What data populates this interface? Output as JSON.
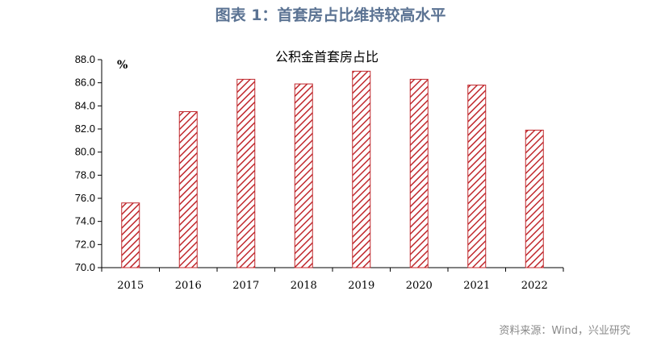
{
  "figure": {
    "title": "图表 1：首套房占比维持较高水平",
    "source": "资料来源：Wind，兴业研究"
  },
  "colors": {
    "bar_stroke": "#c0282d",
    "bar_hatch": "#c0282d",
    "title": "#5b7393",
    "source": "#8a8a8a"
  },
  "chart_data": {
    "type": "bar",
    "title": "公积金首套房占比",
    "unit": "%",
    "categories": [
      "2015",
      "2016",
      "2017",
      "2018",
      "2019",
      "2020",
      "2021",
      "2022"
    ],
    "values": [
      75.6,
      83.5,
      86.3,
      85.9,
      87.0,
      86.3,
      85.8,
      81.9
    ],
    "yticks": [
      "70.0",
      "72.0",
      "74.0",
      "76.0",
      "78.0",
      "80.0",
      "82.0",
      "84.0",
      "86.0",
      "88.0"
    ],
    "ylim": [
      70,
      88
    ],
    "grid": false,
    "legend": "none"
  }
}
